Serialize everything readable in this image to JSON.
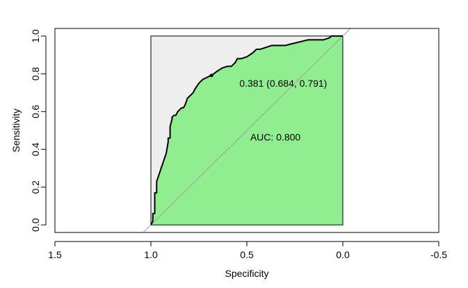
{
  "chart_data": {
    "type": "line",
    "title": "",
    "xlabel": "Specificity",
    "ylabel": "Sensitivity",
    "xlim": [
      1.5,
      -0.5
    ],
    "ylim": [
      0.0,
      1.0
    ],
    "x_reversed": true,
    "x_ticks": [
      1.5,
      1.0,
      0.5,
      0.0,
      -0.5
    ],
    "x_tick_labels": [
      "1.5",
      "1.0",
      "0.5",
      "0.0",
      "-0.5"
    ],
    "y_ticks": [
      0.0,
      0.2,
      0.4,
      0.6,
      0.8,
      1.0
    ],
    "y_tick_labels": [
      "0.0",
      "0.2",
      "0.4",
      "0.6",
      "0.8",
      "1.0"
    ],
    "grid": false,
    "legend": "none",
    "colors": {
      "auc_fill": "#90ee90",
      "roc_region_fill": "#eeeeee",
      "roc_line": "#000000",
      "diagonal": "#a0a0a0"
    },
    "series": [
      {
        "specificity": [
          1.0,
          0.99,
          0.99,
          0.98,
          0.98,
          0.97,
          0.97,
          0.96,
          0.95,
          0.94,
          0.93,
          0.92,
          0.91,
          0.91,
          0.9,
          0.9,
          0.89,
          0.89,
          0.88,
          0.88,
          0.87,
          0.86,
          0.85,
          0.84,
          0.83,
          0.82,
          0.81,
          0.8,
          0.79,
          0.78,
          0.77,
          0.75,
          0.73,
          0.71,
          0.69,
          0.684,
          0.66,
          0.63,
          0.6,
          0.58,
          0.56,
          0.55,
          0.53,
          0.5,
          0.47,
          0.45,
          0.43,
          0.4,
          0.37,
          0.34,
          0.3,
          0.26,
          0.22,
          0.18,
          0.14,
          0.1,
          0.07,
          0.06,
          0.04,
          0.0
        ],
        "sensitivity": [
          0.0,
          0.02,
          0.06,
          0.06,
          0.17,
          0.17,
          0.23,
          0.26,
          0.29,
          0.32,
          0.35,
          0.38,
          0.44,
          0.46,
          0.46,
          0.52,
          0.56,
          0.57,
          0.58,
          0.58,
          0.58,
          0.6,
          0.61,
          0.62,
          0.62,
          0.64,
          0.67,
          0.68,
          0.69,
          0.7,
          0.72,
          0.75,
          0.77,
          0.78,
          0.79,
          0.791,
          0.81,
          0.83,
          0.84,
          0.84,
          0.86,
          0.88,
          0.88,
          0.89,
          0.91,
          0.93,
          0.93,
          0.94,
          0.95,
          0.95,
          0.95,
          0.96,
          0.97,
          0.98,
          0.98,
          0.98,
          0.99,
          1.0,
          1.0,
          1.0
        ]
      }
    ],
    "threshold_point": {
      "specificity": 0.684,
      "sensitivity": 0.791,
      "label": "0.381 (0.684, 0.791)"
    },
    "auc_label": "AUC: 0.800",
    "annotation_positions_data": {
      "threshold_label": [
        0.68,
        0.75
      ],
      "auc_label": [
        0.5,
        0.465
      ]
    }
  }
}
